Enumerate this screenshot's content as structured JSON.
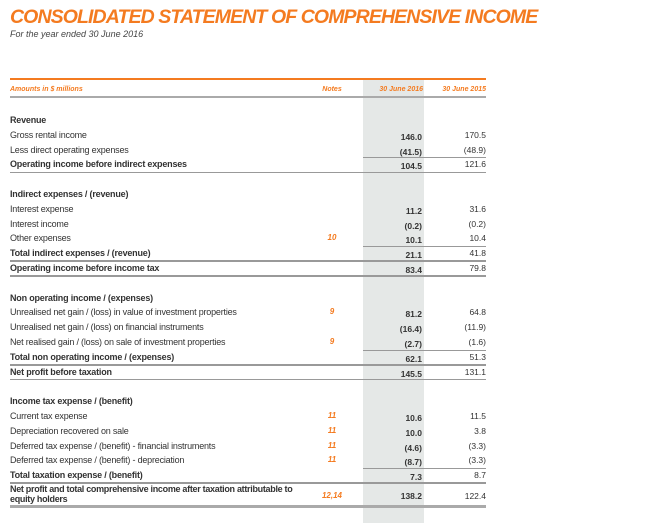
{
  "title": "CONSOLIDATED STATEMENT OF COMPREHENSIVE INCOME",
  "subtitle": "For the year ended 30 June 2016",
  "header": {
    "amounts": "Amounts in $ millions",
    "notes": "Notes",
    "col_2016": "30 June 2016",
    "col_2015": "30 June 2015"
  },
  "colors": {
    "accent": "#f47b20",
    "shade": "#e5e8e7"
  },
  "rows": [
    {
      "type": "heading",
      "label": "Revenue"
    },
    {
      "type": "item",
      "label": "Gross rental income",
      "note": "",
      "v2016": "146.0",
      "v2015": "170.5"
    },
    {
      "type": "item",
      "label": "Less direct operating expenses",
      "note": "",
      "v2016": "(41.5)",
      "v2015": "(48.9)"
    },
    {
      "type": "total",
      "rule_above": true,
      "label": "Operating income before indirect expenses",
      "note": "",
      "v2016": "104.5",
      "v2015": "121.6"
    },
    {
      "type": "spacer"
    },
    {
      "type": "heading",
      "label": "Indirect expenses / (revenue)"
    },
    {
      "type": "item",
      "label": "Interest expense",
      "note": "",
      "v2016": "11.2",
      "v2015": "31.6"
    },
    {
      "type": "item",
      "label": "Interest income",
      "note": "",
      "v2016": "(0.2)",
      "v2015": "(0.2)"
    },
    {
      "type": "item",
      "label": "Other expenses",
      "note": "10",
      "v2016": "10.1",
      "v2015": "10.4"
    },
    {
      "type": "total",
      "rule_above": true,
      "label": "Total indirect expenses / (revenue)",
      "note": "",
      "v2016": "21.1",
      "v2015": "41.8"
    },
    {
      "type": "total",
      "label": "Operating income before income tax",
      "note": "",
      "v2016": "83.4",
      "v2015": "79.8"
    },
    {
      "type": "spacer"
    },
    {
      "type": "heading",
      "label": "Non operating income / (expenses)"
    },
    {
      "type": "item",
      "label": "Unrealised net gain / (loss) in value of investment properties",
      "note": "9",
      "v2016": "81.2",
      "v2015": "64.8"
    },
    {
      "type": "item",
      "label": "Unrealised net gain / (loss) on financial instruments",
      "note": "",
      "v2016": "(16.4)",
      "v2015": "(11.9)"
    },
    {
      "type": "item",
      "label": "Net realised gain / (loss) on sale of investment properties",
      "note": "9",
      "v2016": "(2.7)",
      "v2015": "(1.6)"
    },
    {
      "type": "total",
      "rule_above": true,
      "label": "Total non operating income / (expenses)",
      "note": "",
      "v2016": "62.1",
      "v2015": "51.3"
    },
    {
      "type": "total",
      "label": "Net profit before taxation",
      "note": "",
      "v2016": "145.5",
      "v2015": "131.1"
    },
    {
      "type": "spacer"
    },
    {
      "type": "heading",
      "label": "Income tax expense / (benefit)"
    },
    {
      "type": "item",
      "label": "Current tax expense",
      "note": "11",
      "v2016": "10.6",
      "v2015": "11.5"
    },
    {
      "type": "item",
      "label": "Depreciation recovered on sale",
      "note": "11",
      "v2016": "10.0",
      "v2015": "3.8"
    },
    {
      "type": "item",
      "label": "Deferred tax expense / (benefit) - financial instruments",
      "note": "11",
      "v2016": "(4.6)",
      "v2015": "(3.3)"
    },
    {
      "type": "item",
      "label": "Deferred tax expense / (benefit) - depreciation",
      "note": "11",
      "v2016": "(8.7)",
      "v2015": "(3.3)"
    },
    {
      "type": "total",
      "rule_above": true,
      "label": "Total taxation expense / (benefit)",
      "note": "",
      "v2016": "7.3",
      "v2015": "8.7"
    },
    {
      "type": "total",
      "tall": true,
      "label": "Net profit and total comprehensive income after taxation attributable to equity holders",
      "note": "12,14",
      "v2016": "138.2",
      "v2015": "122.4"
    }
  ]
}
